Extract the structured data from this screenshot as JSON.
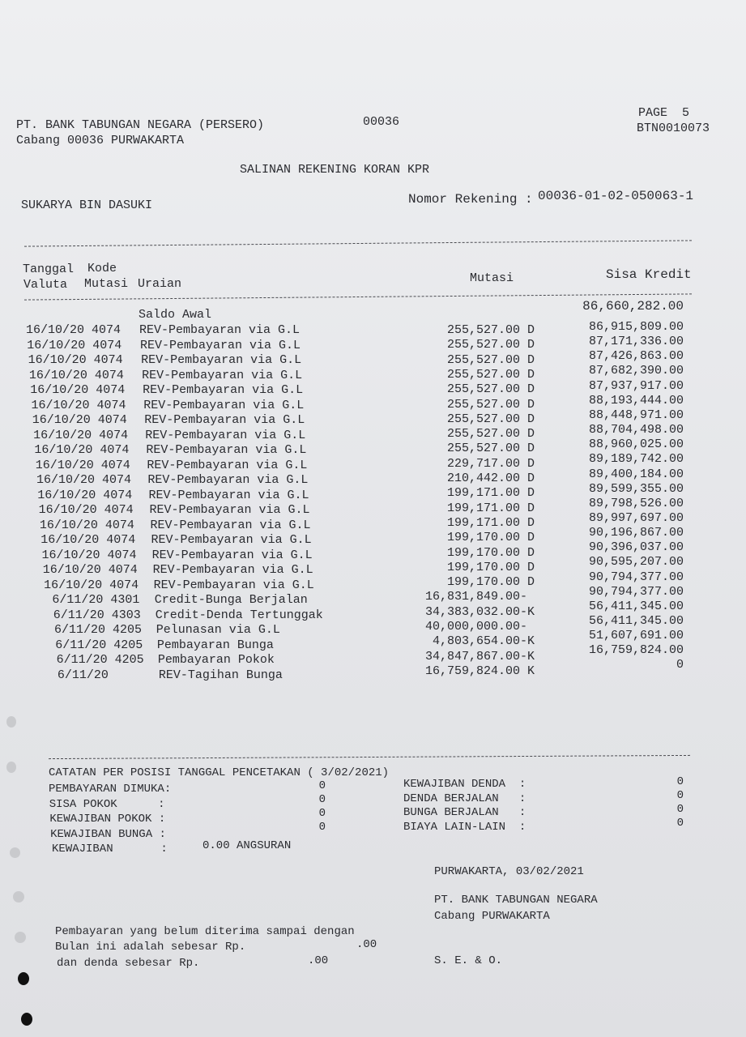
{
  "header": {
    "bank": "PT. BANK TABUNGAN NEGARA (PERSERO)",
    "branch": "Cabang 00036 PURWAKARTA",
    "branch_code": "00036",
    "page": "PAGE  5",
    "doc_code": "BTN0010073",
    "title": "SALINAN REKENING KORAN KPR",
    "customer": "SUKARYA BIN DASUKI",
    "account_label": "Nomor Rekening :",
    "account_number": "00036-01-02-050063-1"
  },
  "columns": {
    "tanggal": "Tanggal",
    "kode": "Kode",
    "valuta": "Valuta",
    "mutasi_code": "Mutasi",
    "uraian": "Uraian",
    "mutasi": "Mutasi",
    "sisa_kredit": "Sisa Kredit"
  },
  "opening": {
    "label": "Saldo Awal",
    "balance": "86,660,282.00"
  },
  "transactions": [
    {
      "date": "16/10/20",
      "code": "4074",
      "desc": "REV-Pembayaran via G.L",
      "amount": "255,527.00 D",
      "balance": "86,915,809.00"
    },
    {
      "date": "16/10/20",
      "code": "4074",
      "desc": "REV-Pembayaran via G.L",
      "amount": "255,527.00 D",
      "balance": "87,171,336.00"
    },
    {
      "date": "16/10/20",
      "code": "4074",
      "desc": "REV-Pembayaran via G.L",
      "amount": "255,527.00 D",
      "balance": "87,426,863.00"
    },
    {
      "date": "16/10/20",
      "code": "4074",
      "desc": "REV-Pembayaran via G.L",
      "amount": "255,527.00 D",
      "balance": "87,682,390.00"
    },
    {
      "date": "16/10/20",
      "code": "4074",
      "desc": "REV-Pembayaran via G.L",
      "amount": "255,527.00 D",
      "balance": "87,937,917.00"
    },
    {
      "date": "16/10/20",
      "code": "4074",
      "desc": "REV-Pembayaran via G.L",
      "amount": "255,527.00 D",
      "balance": "88,193,444.00"
    },
    {
      "date": "16/10/20",
      "code": "4074",
      "desc": "REV-Pembayaran via G.L",
      "amount": "255,527.00 D",
      "balance": "88,448,971.00"
    },
    {
      "date": "16/10/20",
      "code": "4074",
      "desc": "REV-Pembayaran via G.L",
      "amount": "255,527.00 D",
      "balance": "88,704,498.00"
    },
    {
      "date": "16/10/20",
      "code": "4074",
      "desc": "REV-Pembayaran via G.L",
      "amount": "255,527.00 D",
      "balance": "88,960,025.00"
    },
    {
      "date": "16/10/20",
      "code": "4074",
      "desc": "REV-Pembayaran via G.L",
      "amount": "229,717.00 D",
      "balance": "89,189,742.00"
    },
    {
      "date": "16/10/20",
      "code": "4074",
      "desc": "REV-Pembayaran via G.L",
      "amount": "210,442.00 D",
      "balance": "89,400,184.00"
    },
    {
      "date": "16/10/20",
      "code": "4074",
      "desc": "REV-Pembayaran via G.L",
      "amount": "199,171.00 D",
      "balance": "89,599,355.00"
    },
    {
      "date": "16/10/20",
      "code": "4074",
      "desc": "REV-Pembayaran via G.L",
      "amount": "199,171.00 D",
      "balance": "89,798,526.00"
    },
    {
      "date": "16/10/20",
      "code": "4074",
      "desc": "REV-Pembayaran via G.L",
      "amount": "199,171.00 D",
      "balance": "89,997,697.00"
    },
    {
      "date": "16/10/20",
      "code": "4074",
      "desc": "REV-Pembayaran via G.L",
      "amount": "199,170.00 D",
      "balance": "90,196,867.00"
    },
    {
      "date": "16/10/20",
      "code": "4074",
      "desc": "REV-Pembayaran via G.L",
      "amount": "199,170.00 D",
      "balance": "90,396,037.00"
    },
    {
      "date": "16/10/20",
      "code": "4074",
      "desc": "REV-Pembayaran via G.L",
      "amount": "199,170.00 D",
      "balance": "90,595,207.00"
    },
    {
      "date": "16/10/20",
      "code": "4074",
      "desc": "REV-Pembayaran via G.L",
      "amount": "199,170.00 D",
      "balance": "90,794,377.00"
    },
    {
      "date": " 6/11/20",
      "code": "4301",
      "desc": "Credit-Bunga Berjalan",
      "amount": "16,831,849.00- ",
      "balance": "90,794,377.00"
    },
    {
      "date": " 6/11/20",
      "code": "4303",
      "desc": "Credit-Denda Tertunggak",
      "amount": "34,383,032.00-K",
      "balance": "56,411,345.00"
    },
    {
      "date": " 6/11/20",
      "code": "4205",
      "desc": "Pelunasan via G.L",
      "amount": "40,000,000.00- ",
      "balance": "56,411,345.00"
    },
    {
      "date": " 6/11/20",
      "code": "4205",
      "desc": "Pembayaran Bunga",
      "amount": "4,803,654.00-K",
      "balance": "51,607,691.00"
    },
    {
      "date": " 6/11/20",
      "code": "4205",
      "desc": "Pembayaran Pokok",
      "amount": "34,847,867.00-K",
      "balance": "16,759,824.00"
    },
    {
      "date": " 6/11/20",
      "code": "",
      "desc": "REV-Tagihan Bunga",
      "amount": "16,759,824.00 K",
      "balance": "0"
    }
  ],
  "notes": {
    "title": "CATATAN PER POSISI TANGGAL PENCETAKAN ( 3/02/2021)",
    "left": [
      {
        "label": "PEMBAYARAN DIMUKA:",
        "value": "0"
      },
      {
        "label": "SISA POKOK      :",
        "value": "0"
      },
      {
        "label": "KEWAJIBAN POKOK :",
        "value": "0"
      },
      {
        "label": "KEWAJIBAN BUNGA :",
        "value": "0"
      }
    ],
    "kewajiban_label": "KEWAJIBAN       :",
    "kewajiban_value": "0.00 ANGSURAN",
    "right": [
      {
        "label": "KEWAJIBAN DENDA  :",
        "value": "0"
      },
      {
        "label": "DENDA BERJALAN   :",
        "value": "0"
      },
      {
        "label": "BUNGA BERJALAN   :",
        "value": "0"
      },
      {
        "label": "BIAYA LAIN-LAIN  :",
        "value": "0"
      }
    ]
  },
  "footer": {
    "place_date": "PURWAKARTA, 03/02/2021",
    "bank": "PT. BANK TABUNGAN NEGARA",
    "branch": "Cabang PURWAKARTA",
    "unpaid_line1": "Pembayaran yang belum diterima sampai dengan",
    "unpaid_line2": "Bulan ini adalah sebesar Rp.",
    "unpaid_amount": ".00",
    "penalty_line": "dan denda sebesar Rp.",
    "penalty_amount": ".00",
    "seo": "S. E. & O."
  }
}
